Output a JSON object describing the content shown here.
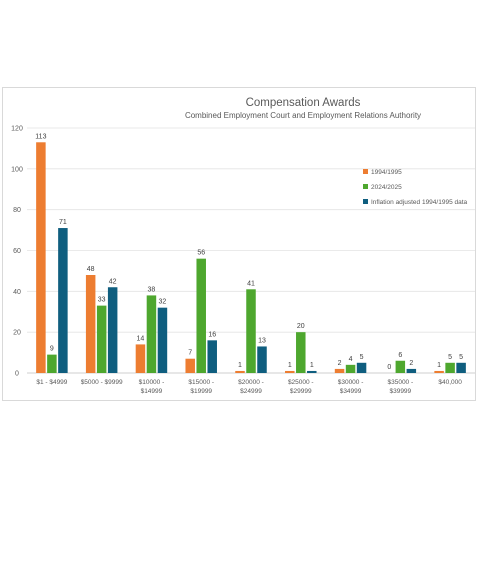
{
  "chart_data": {
    "type": "bar",
    "title": "Compensation Awards",
    "subtitle": "Combined Employment Court and Employment Relations Authority",
    "xlabel": "",
    "ylabel": "",
    "ylim": [
      0,
      120
    ],
    "yticks": [
      0,
      20,
      40,
      60,
      80,
      100,
      120
    ],
    "grid": true,
    "legend_position": "right",
    "categories": [
      [
        "$1 - $4999"
      ],
      [
        "$5000 - $9999"
      ],
      [
        "$10000 -",
        "$14999"
      ],
      [
        "$15000 -",
        "$19999"
      ],
      [
        "$20000 -",
        "$24999"
      ],
      [
        "$25000 -",
        "$29999"
      ],
      [
        "$30000 -",
        "$34999"
      ],
      [
        "$35000 -",
        "$39999"
      ],
      [
        "$40,000"
      ]
    ],
    "series": [
      {
        "name": "1994/1995",
        "color": "#ED7D31",
        "values": [
          113,
          48,
          14,
          7,
          1,
          1,
          2,
          0,
          1
        ]
      },
      {
        "name": "2024/2025",
        "color": "#4EA72E",
        "values": [
          9,
          33,
          38,
          56,
          41,
          20,
          4,
          6,
          5
        ]
      },
      {
        "name": "Inflation adjusted 1994/1995 data",
        "color": "#0F5E7F",
        "values": [
          71,
          42,
          32,
          16,
          13,
          1,
          5,
          2,
          5
        ]
      }
    ]
  }
}
